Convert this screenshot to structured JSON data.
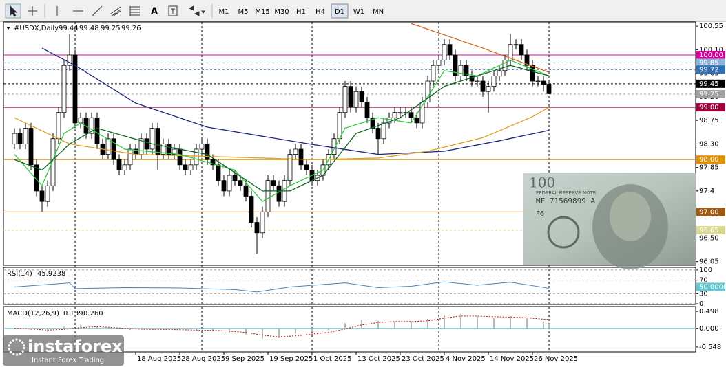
{
  "toolbar": {
    "tools": [
      "A"
    ],
    "timeframes": [
      "M1",
      "M5",
      "M15",
      "M30",
      "H1",
      "H4",
      "D1",
      "W1",
      "MN"
    ],
    "active": "D1"
  },
  "logo": {
    "name": "instaforex",
    "tagline": "Instant Forex Trading"
  },
  "banknote": {
    "denomination": "100",
    "issuer": "FEDERAL RESERVE NOTE",
    "serial": "MF 71569899 A",
    "code": "F6"
  },
  "chart_data": [
    {
      "type": "candlestick",
      "title": "#USDX,Daily",
      "categories": [
        null,
        null,
        null,
        null,
        null,
        null,
        null,
        null,
        null,
        null,
        null,
        null,
        null,
        null,
        null,
        null,
        null,
        null,
        null,
        null,
        null,
        null,
        "18 Aug 2025",
        null,
        null,
        null,
        null,
        null,
        null,
        null,
        "28 Aug 2025",
        null,
        null,
        null,
        null,
        null,
        null,
        null,
        "9 Sep 2025",
        null,
        null,
        null,
        null,
        null,
        null,
        null,
        "19 Sep 2025",
        null,
        null,
        null,
        null,
        null,
        null,
        null,
        "1 Oct 2025",
        null,
        null,
        null,
        null,
        null,
        null,
        null,
        "13 Oct 2025",
        null,
        null,
        null,
        null,
        null,
        null,
        null,
        "23 Oct 2025",
        null,
        null,
        null,
        null,
        null,
        null,
        null,
        "4 Nov 2025",
        null,
        null,
        null,
        null,
        null,
        null,
        null,
        "14 Nov 2025",
        null,
        null,
        null,
        null,
        null,
        null,
        null,
        "26 Nov 2025",
        null,
        null,
        null
      ],
      "open": [
        98.3,
        98.5,
        98.3,
        98.6,
        97.9,
        97.4,
        97.2,
        97.5,
        98.4,
        98.9,
        99.8,
        100.0,
        98.7,
        98.8,
        98.5,
        98.8,
        98.3,
        98.1,
        98.4,
        98.0,
        97.8,
        97.9,
        98.2,
        98.1,
        98.4,
        98.2,
        98.6,
        98.1,
        98.3,
        98.1,
        98.2,
        97.9,
        97.8,
        97.9,
        98.2,
        98.3,
        98.0,
        97.9,
        97.6,
        97.4,
        97.7,
        97.6,
        97.5,
        97.3,
        96.8,
        96.6,
        97.0,
        97.6,
        97.5,
        97.2,
        97.6,
        98.1,
        98.2,
        97.9,
        97.8,
        97.6,
        97.7,
        97.9,
        98.1,
        98.4,
        98.9,
        99.4,
        99.0,
        99.3,
        99.1,
        98.8,
        98.6,
        98.4,
        98.7,
        98.8,
        98.9,
        98.9,
        98.9,
        98.8,
        98.7,
        99.1,
        99.5,
        99.8,
        99.9,
        100.2,
        100.0,
        99.6,
        99.8,
        99.6,
        99.5,
        99.5,
        99.3,
        99.4,
        99.6,
        99.7,
        99.9,
        100.2,
        100.2,
        100.0,
        99.8,
        99.5,
        99.5,
        99.44
      ],
      "high": [
        98.6,
        98.6,
        98.7,
        98.7,
        98.0,
        97.5,
        97.6,
        98.5,
        99.0,
        99.9,
        100.4,
        100.1,
        98.9,
        98.9,
        98.9,
        98.9,
        98.4,
        98.5,
        98.5,
        98.1,
        98.0,
        98.3,
        98.3,
        98.5,
        98.5,
        98.7,
        98.7,
        98.4,
        98.4,
        98.3,
        98.3,
        98.0,
        98.0,
        98.3,
        98.4,
        98.4,
        98.1,
        98.0,
        97.7,
        97.8,
        97.8,
        97.7,
        97.6,
        97.4,
        96.9,
        97.1,
        97.7,
        97.7,
        97.6,
        97.7,
        98.2,
        98.3,
        98.3,
        98.0,
        97.9,
        97.8,
        98.0,
        98.2,
        98.5,
        99.0,
        99.5,
        99.5,
        99.4,
        99.4,
        99.2,
        98.9,
        98.7,
        98.8,
        98.9,
        99.0,
        99.0,
        99.0,
        99.0,
        98.9,
        99.2,
        99.6,
        99.9,
        100.0,
        100.3,
        100.3,
        100.1,
        99.9,
        99.9,
        99.7,
        99.6,
        99.6,
        99.5,
        99.7,
        99.8,
        100.0,
        100.4,
        100.3,
        100.3,
        100.1,
        99.9,
        99.6,
        99.6,
        99.48
      ],
      "low": [
        98.2,
        98.2,
        98.2,
        97.8,
        97.3,
        97.0,
        97.1,
        97.4,
        98.3,
        98.8,
        99.7,
        98.6,
        98.6,
        98.4,
        98.4,
        98.2,
        98.0,
        98.0,
        97.9,
        97.7,
        97.7,
        97.8,
        98.0,
        98.0,
        98.1,
        98.1,
        97.8,
        98.0,
        98.0,
        98.0,
        97.8,
        97.7,
        97.7,
        97.8,
        98.1,
        97.9,
        97.8,
        97.5,
        97.3,
        97.3,
        97.5,
        97.4,
        97.2,
        96.7,
        96.2,
        96.5,
        96.9,
        97.4,
        97.1,
        97.1,
        97.5,
        98.0,
        97.8,
        97.7,
        97.5,
        97.5,
        97.6,
        97.8,
        98.0,
        98.3,
        98.8,
        98.9,
        98.9,
        99.0,
        98.7,
        98.5,
        98.1,
        98.3,
        98.6,
        98.7,
        98.8,
        98.8,
        98.7,
        98.6,
        98.6,
        99.0,
        99.4,
        99.7,
        99.8,
        99.9,
        99.5,
        99.5,
        99.5,
        99.4,
        99.4,
        99.2,
        98.9,
        99.3,
        99.5,
        99.6,
        99.8,
        100.1,
        99.9,
        99.7,
        99.4,
        99.4,
        99.3,
        99.25
      ],
      "close": [
        98.5,
        98.3,
        98.6,
        97.9,
        97.4,
        97.2,
        97.5,
        98.4,
        98.9,
        99.8,
        100.0,
        98.7,
        98.8,
        98.5,
        98.8,
        98.3,
        98.1,
        98.4,
        98.0,
        97.8,
        97.9,
        98.2,
        98.1,
        98.4,
        98.2,
        98.6,
        98.1,
        98.3,
        98.1,
        98.2,
        97.9,
        97.8,
        97.9,
        98.2,
        98.3,
        98.0,
        97.9,
        97.6,
        97.4,
        97.7,
        97.6,
        97.5,
        97.3,
        96.8,
        96.6,
        97.0,
        97.6,
        97.5,
        97.2,
        97.6,
        98.1,
        98.2,
        97.9,
        97.8,
        97.6,
        97.7,
        97.9,
        98.1,
        98.4,
        98.9,
        99.4,
        99.0,
        99.3,
        99.1,
        98.8,
        98.6,
        98.4,
        98.7,
        98.8,
        98.9,
        98.9,
        98.9,
        98.8,
        98.7,
        99.1,
        99.5,
        99.8,
        99.9,
        100.2,
        100.0,
        99.6,
        99.8,
        99.6,
        99.5,
        99.5,
        99.3,
        99.4,
        99.6,
        99.7,
        99.9,
        100.2,
        100.2,
        100.0,
        99.8,
        99.5,
        99.5,
        99.44,
        99.26
      ],
      "up_color": "#ffffff",
      "down_color": "#000000",
      "ylim": [
        95.98,
        100.63
      ],
      "yticks": [
        100.55,
        {
          "value": 100.1,
          "label": "100.10"
        },
        99.65,
        {
          "value": 99.2,
          "label": "99.20"
        },
        98.75,
        {
          "value": 98.3,
          "label": "98.30"
        },
        97.85,
        97.4,
        96.95,
        {
          "value": 96.5,
          "label": "96.50"
        },
        96.05
      ],
      "series": [
        {
          "color": "#1a237e",
          "x": [
            5,
            11,
            22,
            35,
            54,
            66,
            78,
            88,
            97
          ],
          "values": [
            100.13,
            99.8,
            99.08,
            98.62,
            98.29,
            98.1,
            98.16,
            98.36,
            98.56
          ]
        },
        {
          "color": "#e0a020",
          "x": [
            0,
            10,
            22,
            39,
            54,
            66,
            75,
            85,
            94,
            97
          ],
          "values": [
            98.8,
            98.3,
            98.1,
            98.05,
            98.0,
            98.03,
            98.16,
            98.42,
            98.82,
            99.0
          ]
        },
        {
          "color": "#d2691e",
          "x": [
            72,
            85,
            97
          ],
          "values": [
            100.6,
            100.13,
            99.67
          ]
        },
        {
          "color": "#2ecc40",
          "x": [
            0,
            5,
            9,
            12,
            20,
            30,
            40,
            45,
            50,
            56,
            60,
            66,
            72,
            78,
            84,
            90,
            97
          ],
          "values": [
            98.1,
            97.5,
            98.5,
            98.7,
            98.2,
            98.1,
            97.8,
            97.2,
            97.5,
            97.8,
            98.6,
            98.8,
            98.7,
            99.7,
            99.6,
            99.9,
            99.6
          ]
        },
        {
          "color": "#0b6623",
          "x": [
            0,
            5,
            10,
            15,
            25,
            35,
            45,
            50,
            56,
            62,
            70,
            78,
            84,
            90,
            97
          ],
          "values": [
            98.0,
            97.8,
            98.3,
            98.6,
            98.3,
            98.1,
            97.4,
            97.4,
            97.7,
            98.5,
            98.8,
            99.4,
            99.6,
            99.8,
            99.6
          ]
        }
      ],
      "levels": [
        {
          "value": 100,
          "label": "100.00",
          "color": "#e000a0",
          "style": "solid",
          "text_color": "#ffffff"
        },
        {
          "value": 99.85,
          "color": "#8ab4d8",
          "style": "dashed",
          "text_color": "#ffffff"
        },
        {
          "value": 99.72,
          "color": "#2f6fb5",
          "style": "dashed",
          "text_color": "#ffffff"
        },
        {
          "value": 99.45,
          "color": "#000000",
          "style": "dashed",
          "text_color": "#ffffff"
        },
        {
          "value": 99.25,
          "color": "#a0a0a0",
          "style": "dashed",
          "text_color": "#ffffff"
        },
        {
          "value": 99,
          "label": "99.00",
          "color": "#a0003c",
          "style": "solid",
          "text_color": "#ffffff"
        },
        {
          "value": 98,
          "label": "98.00",
          "color": "#e09000",
          "style": "solid",
          "text_color": "#ffffff"
        },
        {
          "value": 97,
          "label": "97.00",
          "color": "#a05a10",
          "style": "solid",
          "text_color": "#ffffff"
        },
        {
          "value": 96.65,
          "color": "#d8d890",
          "style": "dashed",
          "text_color": "#ffffff"
        }
      ]
    },
    {
      "type": "line",
      "title": "RSI(14)",
      "last_value": 45.9238,
      "color": "#4682b4",
      "x": [
        0,
        10,
        11,
        20,
        30,
        40,
        44,
        50,
        60,
        66,
        72,
        78,
        84,
        90,
        97
      ],
      "values": [
        50,
        62,
        45,
        48,
        47,
        42,
        35,
        50,
        62,
        48,
        52,
        65,
        55,
        64,
        46
      ],
      "ylim": [
        -2,
        108
      ],
      "yticks": [
        100,
        70,
        30,
        0
      ],
      "grid": true,
      "levels": [
        {
          "value": 50,
          "label": "50.0000",
          "color": "#5fc8d0",
          "style": "none",
          "text_color": "#ffffff"
        }
      ]
    },
    {
      "type": "bar",
      "title": "MACD(12,26,9)",
      "readout": [
        0.139,
        {
          "value": 0.26,
          "label": "0.260"
        }
      ],
      "color": "#b8b8b8",
      "x": [
        0,
        3,
        6,
        9,
        12,
        15,
        18,
        21,
        24,
        27,
        30,
        33,
        36,
        39,
        42,
        45,
        48,
        51,
        54,
        57,
        60,
        63,
        66,
        69,
        72,
        75,
        78,
        81,
        84,
        87,
        90,
        93,
        96,
        97
      ],
      "values": [
        0.0,
        -0.05,
        -0.1,
        0.05,
        0.1,
        0.05,
        -0.02,
        -0.05,
        -0.03,
        -0.02,
        -0.05,
        -0.05,
        -0.08,
        -0.12,
        -0.18,
        -0.3,
        -0.28,
        -0.15,
        -0.1,
        -0.05,
        0.15,
        0.25,
        0.22,
        0.2,
        0.2,
        0.28,
        0.4,
        0.42,
        0.35,
        0.3,
        0.35,
        0.3,
        0.2,
        0.139
      ],
      "signal": {
        "color": "#c00000",
        "values": [
          0.0,
          -0.02,
          -0.05,
          -0.03,
          0.02,
          0.05,
          0.02,
          -0.01,
          -0.03,
          -0.03,
          -0.04,
          -0.05,
          -0.06,
          -0.08,
          -0.12,
          -0.2,
          -0.25,
          -0.22,
          -0.17,
          -0.12,
          -0.02,
          0.1,
          0.17,
          0.2,
          0.2,
          0.22,
          0.3,
          0.36,
          0.36,
          0.34,
          0.33,
          0.31,
          0.27,
          0.26
        ]
      },
      "ylim": [
        -0.69,
        0.64
      ],
      "yticks": [
        0.498,
        {
          "value": 0,
          "label": "0.000"
        },
        -0.548
      ],
      "levels": [
        {
          "value": 0,
          "color": "#5fc8d0",
          "style": "solid"
        }
      ]
    }
  ]
}
